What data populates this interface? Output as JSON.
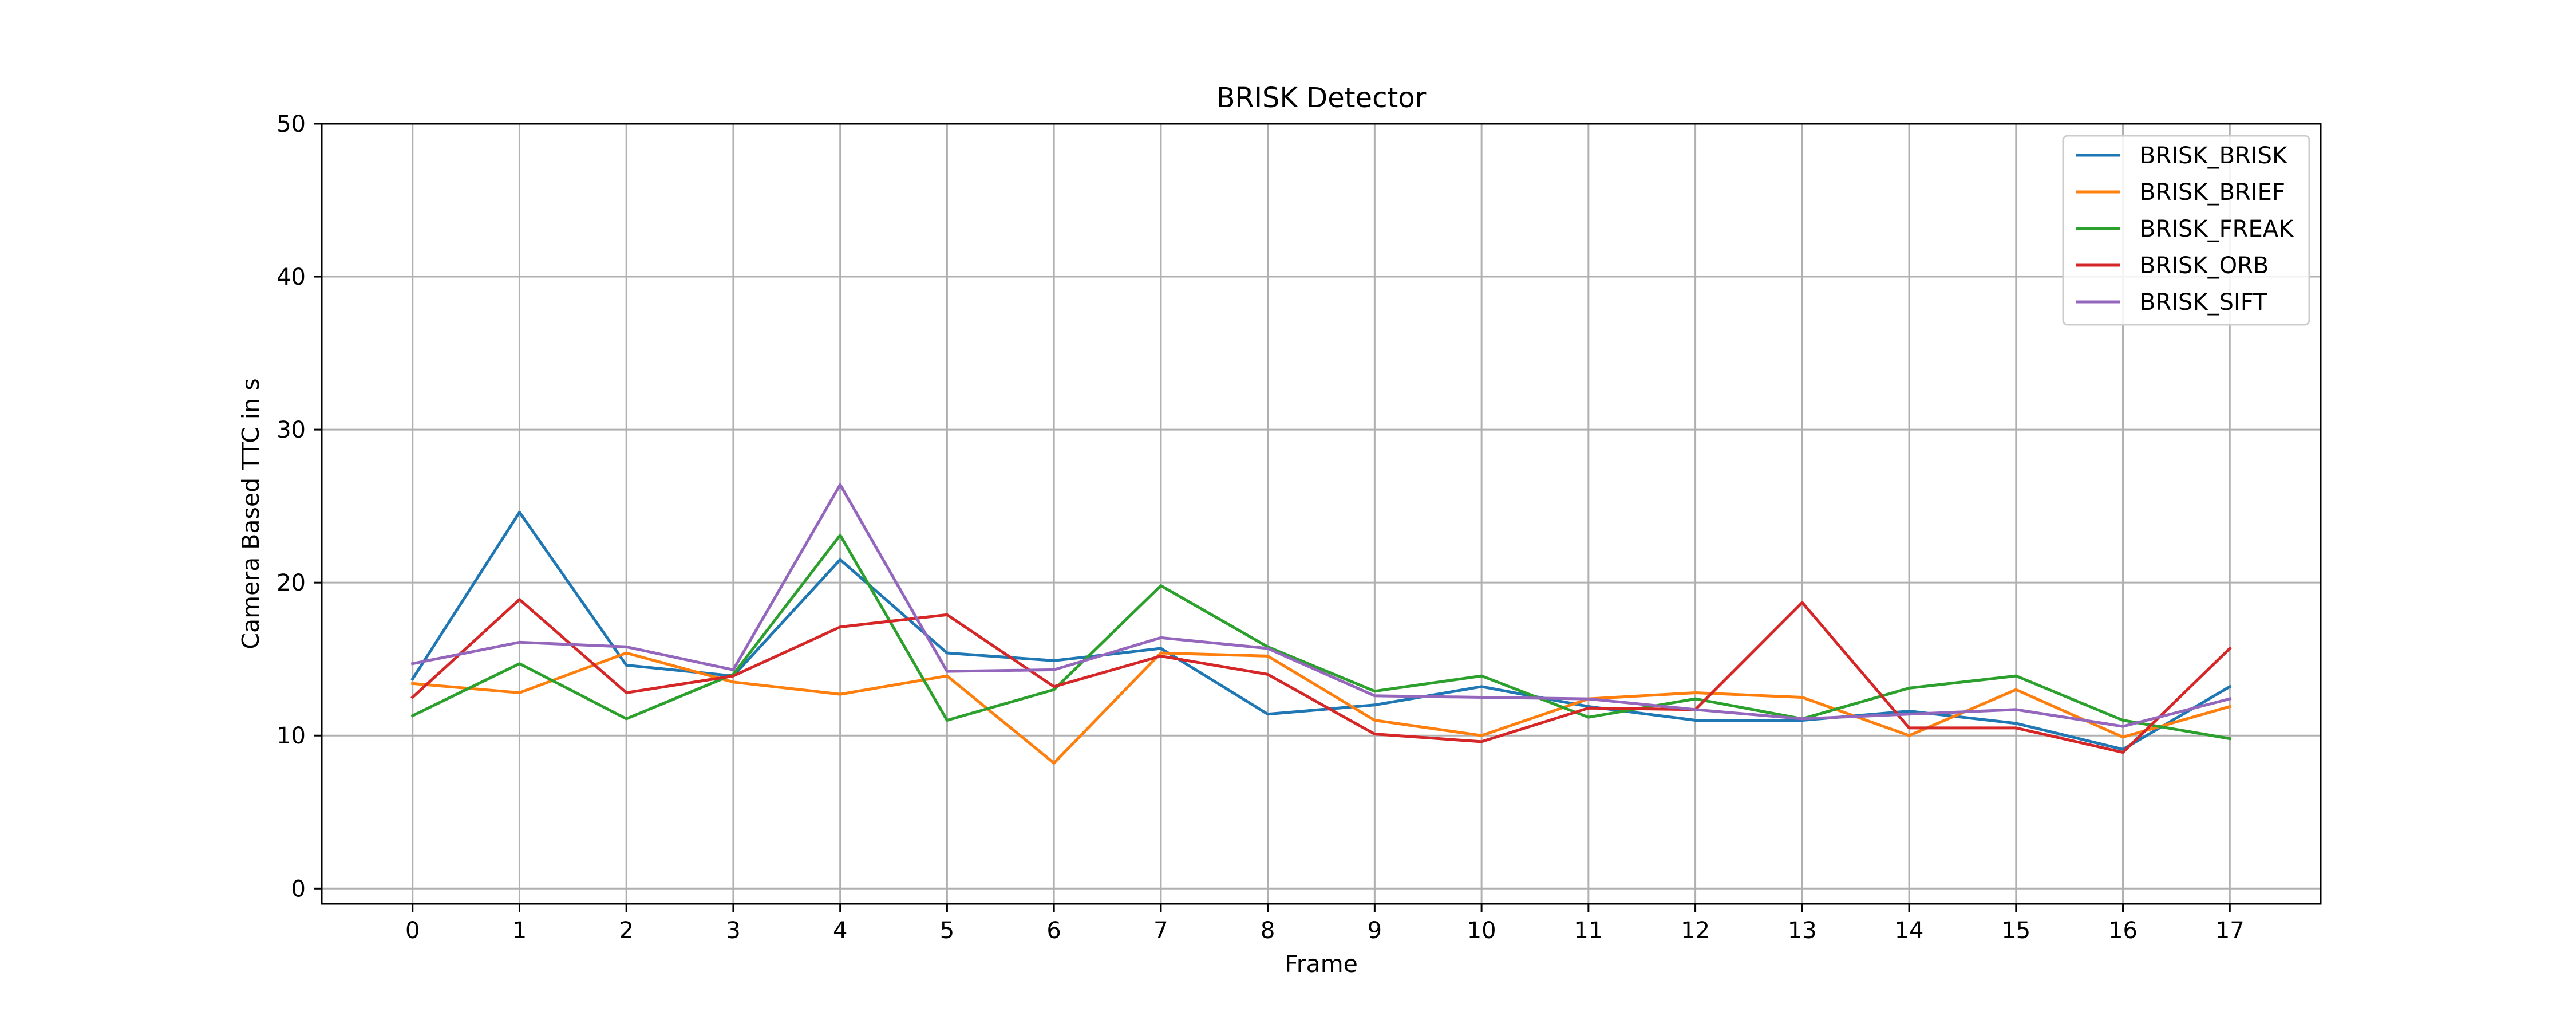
{
  "chart_data": {
    "type": "line",
    "title": "BRISK Detector",
    "xlabel": "Frame",
    "ylabel": "Camera Based TTC in s",
    "x": [
      0,
      1,
      2,
      3,
      4,
      5,
      6,
      7,
      8,
      9,
      10,
      11,
      12,
      13,
      14,
      15,
      16,
      17
    ],
    "xticks": [
      "0",
      "1",
      "2",
      "3",
      "4",
      "5",
      "6",
      "7",
      "8",
      "9",
      "10",
      "11",
      "12",
      "13",
      "14",
      "15",
      "16",
      "17"
    ],
    "xlim": [
      -0.85,
      17.85
    ],
    "ylim": [
      -1,
      50
    ],
    "yticks": [
      0,
      10,
      20,
      30,
      40,
      50
    ],
    "grid": true,
    "legend_position": "top-right",
    "series": [
      {
        "name": "BRISK_BRISK",
        "color": "#1f77b4",
        "values": [
          13.7,
          24.6,
          14.6,
          13.9,
          21.5,
          15.4,
          14.9,
          15.7,
          11.4,
          12.0,
          13.2,
          11.9,
          11.0,
          11.0,
          11.6,
          10.8,
          9.1,
          13.2
        ]
      },
      {
        "name": "BRISK_BRIEF",
        "color": "#ff7f0e",
        "values": [
          13.4,
          12.8,
          15.4,
          13.5,
          12.7,
          13.9,
          8.2,
          15.4,
          15.2,
          11.0,
          10.0,
          12.4,
          12.8,
          12.5,
          10.0,
          13.0,
          9.9,
          11.9
        ]
      },
      {
        "name": "BRISK_FREAK",
        "color": "#2ca02c",
        "values": [
          11.3,
          14.7,
          11.1,
          14.0,
          23.1,
          11.0,
          13.0,
          19.8,
          15.8,
          12.9,
          13.9,
          11.2,
          12.4,
          11.1,
          13.1,
          13.9,
          11.0,
          9.8
        ]
      },
      {
        "name": "BRISK_ORB",
        "color": "#d62728",
        "values": [
          12.5,
          18.9,
          12.8,
          13.9,
          17.1,
          17.9,
          13.2,
          15.2,
          14.0,
          10.1,
          9.6,
          11.8,
          11.7,
          18.7,
          10.5,
          10.5,
          8.9,
          15.7
        ]
      },
      {
        "name": "BRISK_SIFT",
        "color": "#9467bd",
        "values": [
          14.7,
          16.1,
          15.8,
          14.3,
          26.4,
          14.2,
          14.3,
          16.4,
          15.7,
          12.6,
          12.5,
          12.4,
          11.7,
          11.1,
          11.4,
          11.7,
          10.6,
          12.4
        ]
      }
    ]
  }
}
